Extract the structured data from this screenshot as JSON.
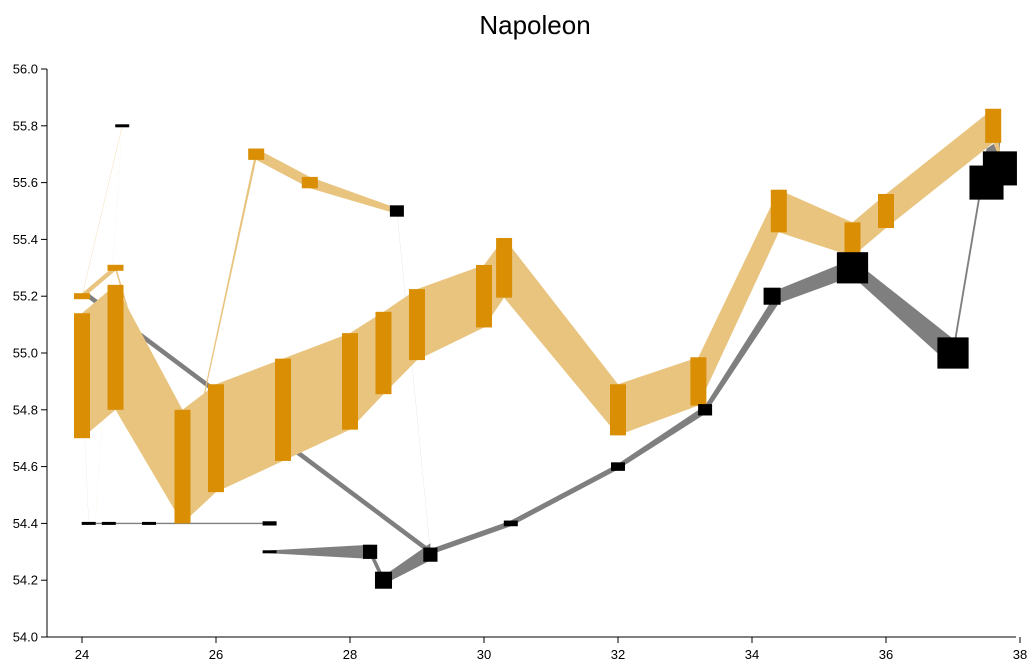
{
  "chart_data": {
    "type": "flow-map",
    "title": "Napoleon",
    "xlabel": "",
    "ylabel": "",
    "xlim": [
      23.4,
      38
    ],
    "ylim": [
      54.0,
      56.0
    ],
    "x_ticks": [
      "24",
      "26",
      "28",
      "30",
      "32",
      "34",
      "36",
      "38"
    ],
    "y_ticks": [
      "54.0",
      "54.2",
      "54.4",
      "54.6",
      "54.8",
      "55.0",
      "55.2",
      "55.4",
      "55.6",
      "55.8",
      "56.0"
    ],
    "grid": false,
    "colors": {
      "advance": "#E8C47E",
      "advance_node": "#D98E04",
      "retreat": "#7F7F7F",
      "retreat_node": "#000000"
    },
    "advance_segments": [
      [
        [
          24.0,
          54.92,
          0.44
        ],
        [
          24.5,
          55.02,
          0.44
        ]
      ],
      [
        [
          24.5,
          55.02,
          0.44
        ],
        [
          25.5,
          54.6,
          0.4
        ]
      ],
      [
        [
          25.5,
          54.6,
          0.4
        ],
        [
          26.0,
          54.7,
          0.38
        ]
      ],
      [
        [
          26.0,
          54.7,
          0.38
        ],
        [
          27.0,
          54.8,
          0.36
        ]
      ],
      [
        [
          27.0,
          54.8,
          0.36
        ],
        [
          28.0,
          54.9,
          0.34
        ]
      ],
      [
        [
          28.0,
          54.9,
          0.34
        ],
        [
          28.5,
          55.0,
          0.29
        ]
      ],
      [
        [
          28.5,
          55.0,
          0.29
        ],
        [
          29.0,
          55.1,
          0.25
        ]
      ],
      [
        [
          29.0,
          55.1,
          0.25
        ],
        [
          30.0,
          55.2,
          0.22
        ]
      ],
      [
        [
          30.0,
          55.2,
          0.22
        ],
        [
          30.3,
          55.3,
          0.21
        ]
      ],
      [
        [
          30.3,
          55.3,
          0.21
        ],
        [
          32.0,
          54.8,
          0.18
        ]
      ],
      [
        [
          32.0,
          54.8,
          0.18
        ],
        [
          33.2,
          54.9,
          0.17
        ]
      ],
      [
        [
          33.2,
          54.9,
          0.17
        ],
        [
          34.4,
          55.5,
          0.15
        ]
      ],
      [
        [
          34.4,
          55.5,
          0.15
        ],
        [
          35.5,
          55.4,
          0.12
        ]
      ],
      [
        [
          35.5,
          55.4,
          0.12
        ],
        [
          36.0,
          55.5,
          0.12
        ]
      ],
      [
        [
          36.0,
          55.5,
          0.12
        ],
        [
          37.6,
          55.8,
          0.12
        ]
      ],
      [
        [
          37.6,
          55.8,
          0.12
        ],
        [
          37.7,
          55.7,
          0.03
        ]
      ],
      [
        [
          24.0,
          55.2,
          0.02
        ],
        [
          24.5,
          55.3,
          0.02
        ]
      ],
      [
        [
          24.5,
          55.3,
          0.02
        ],
        [
          25.5,
          54.5,
          0.01
        ]
      ],
      [
        [
          25.5,
          54.5,
          0.01
        ],
        [
          26.6,
          55.7,
          0.04
        ]
      ],
      [
        [
          26.6,
          55.7,
          0.04
        ],
        [
          27.4,
          55.6,
          0.04
        ]
      ],
      [
        [
          27.4,
          55.6,
          0.04
        ],
        [
          28.7,
          55.5,
          0.02
        ]
      ],
      [
        [
          24.0,
          55.2,
          0.004
        ],
        [
          24.6,
          55.8,
          0.004
        ]
      ],
      [
        [
          24.6,
          55.8,
          0.004
        ],
        [
          24.2,
          54.4,
          0.004
        ]
      ]
    ],
    "retreat_segments": [
      [
        [
          37.7,
          55.7,
          0.1
        ],
        [
          37.5,
          55.7,
          0.04
        ]
      ],
      [
        [
          37.5,
          55.7,
          0.04
        ],
        [
          37.0,
          55.0,
          0.04
        ]
      ],
      [
        [
          37.0,
          55.0,
          0.1
        ],
        [
          35.5,
          55.3,
          0.06
        ]
      ],
      [
        [
          35.5,
          55.3,
          0.06
        ],
        [
          34.4,
          55.2,
          0.05
        ]
      ],
      [
        [
          34.4,
          55.2,
          0.05
        ],
        [
          33.3,
          54.8,
          0.03
        ]
      ],
      [
        [
          33.3,
          54.8,
          0.03
        ],
        [
          32.0,
          54.6,
          0.02
        ]
      ],
      [
        [
          32.0,
          54.6,
          0.02
        ],
        [
          30.4,
          54.4,
          0.02
        ]
      ],
      [
        [
          30.4,
          54.4,
          0.02
        ],
        [
          29.2,
          54.3,
          0.02
        ]
      ],
      [
        [
          29.2,
          54.3,
          0.06
        ],
        [
          28.5,
          54.2,
          0.03
        ]
      ],
      [
        [
          28.5,
          54.2,
          0.03
        ],
        [
          28.3,
          54.3,
          0.03
        ]
      ],
      [
        [
          28.3,
          54.3,
          0.05
        ],
        [
          26.8,
          54.3,
          0.01
        ]
      ],
      [
        [
          26.8,
          54.3,
          0.01
        ],
        [
          26.8,
          54.4,
          0.006
        ]
      ],
      [
        [
          24.1,
          55.2,
          0.02
        ],
        [
          29.2,
          54.3,
          0.02
        ]
      ],
      [
        [
          28.7,
          55.5,
          0.003
        ],
        [
          29.2,
          54.3,
          0.003
        ]
      ],
      [
        [
          24.0,
          54.92,
          0.005
        ],
        [
          24.1,
          54.4,
          0.005
        ]
      ],
      [
        [
          24.1,
          54.4,
          0.005
        ],
        [
          26.8,
          54.4,
          0.005
        ]
      ]
    ],
    "advance_nodes": [
      [
        24.0,
        54.92,
        0.44
      ],
      [
        24.5,
        55.02,
        0.44
      ],
      [
        25.5,
        54.6,
        0.4
      ],
      [
        26.0,
        54.7,
        0.38
      ],
      [
        27.0,
        54.8,
        0.36
      ],
      [
        28.0,
        54.9,
        0.34
      ],
      [
        28.5,
        55.0,
        0.29
      ],
      [
        29.0,
        55.1,
        0.25
      ],
      [
        30.0,
        55.2,
        0.22
      ],
      [
        30.3,
        55.3,
        0.21
      ],
      [
        32.0,
        54.8,
        0.18
      ],
      [
        33.2,
        54.9,
        0.17
      ],
      [
        34.4,
        55.5,
        0.15
      ],
      [
        35.5,
        55.4,
        0.12
      ],
      [
        36.0,
        55.5,
        0.12
      ],
      [
        37.6,
        55.8,
        0.12
      ],
      [
        24.0,
        55.2,
        0.02
      ],
      [
        24.5,
        55.3,
        0.02
      ],
      [
        26.6,
        55.7,
        0.04
      ],
      [
        27.4,
        55.6,
        0.04
      ]
    ],
    "retreat_nodes": [
      [
        37.5,
        55.6,
        0.12
      ],
      [
        37.7,
        55.65,
        0.12
      ],
      [
        37.0,
        55.0,
        0.11
      ],
      [
        35.5,
        55.3,
        0.11
      ],
      [
        34.3,
        55.2,
        0.06
      ],
      [
        33.3,
        54.8,
        0.04
      ],
      [
        32.0,
        54.6,
        0.03
      ],
      [
        30.4,
        54.4,
        0.02
      ],
      [
        29.2,
        54.29,
        0.05
      ],
      [
        28.5,
        54.2,
        0.06
      ],
      [
        28.3,
        54.3,
        0.05
      ],
      [
        26.8,
        54.3,
        0.01
      ],
      [
        26.8,
        54.4,
        0.015
      ],
      [
        28.7,
        55.5,
        0.04
      ],
      [
        24.6,
        55.8,
        0.01
      ],
      [
        24.1,
        54.4,
        0.005
      ],
      [
        24.4,
        54.4,
        0.005
      ],
      [
        25.0,
        54.4,
        0.01
      ]
    ]
  }
}
